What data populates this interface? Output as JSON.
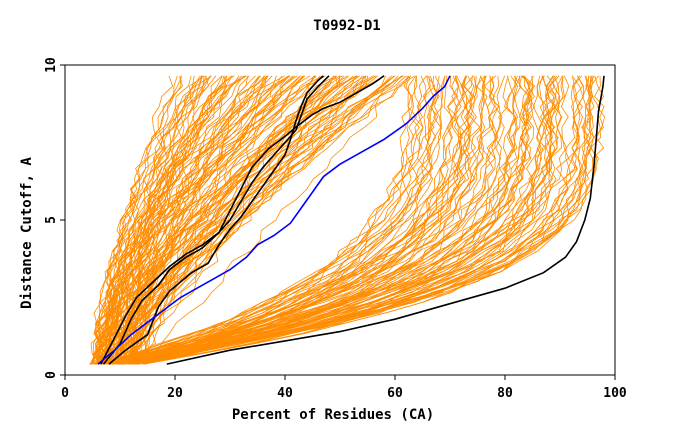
{
  "chart_data": {
    "type": "line",
    "title": "T0992-D1",
    "xlabel": "Percent of Residues (CA)",
    "ylabel": "Distance Cutoff, A",
    "xlim": [
      0,
      100
    ],
    "ylim": [
      0,
      10
    ],
    "xticks": [
      "0",
      "20",
      "40",
      "60",
      "80",
      "100"
    ],
    "yticks": [
      "0",
      "5",
      "10"
    ],
    "grid": false,
    "colors": {
      "bundle": "#ff8c00",
      "highlight_black": "#000000",
      "highlight_blue": "#0000ff"
    },
    "highlight_series": [
      {
        "color": "#000000",
        "points": [
          [
            18.5,
            0.35
          ],
          [
            30,
            0.8
          ],
          [
            40,
            1.1
          ],
          [
            50,
            1.4
          ],
          [
            60,
            1.8
          ],
          [
            70,
            2.3
          ],
          [
            80,
            2.8
          ],
          [
            87,
            3.3
          ],
          [
            91,
            3.8
          ],
          [
            93,
            4.3
          ],
          [
            94.5,
            5.0
          ],
          [
            95.5,
            5.7
          ],
          [
            96.2,
            6.8
          ],
          [
            97,
            8.5
          ],
          [
            97.8,
            9.3
          ],
          [
            98,
            9.65
          ]
        ]
      },
      {
        "color": "#000000",
        "points": [
          [
            7,
            0.35
          ],
          [
            10,
            1.0
          ],
          [
            12,
            1.8
          ],
          [
            14,
            2.4
          ],
          [
            17,
            2.9
          ],
          [
            19,
            3.4
          ],
          [
            22,
            3.8
          ],
          [
            25,
            4.1
          ],
          [
            28,
            4.6
          ],
          [
            30,
            5.3
          ],
          [
            32,
            6.0
          ],
          [
            34,
            6.7
          ],
          [
            37,
            7.3
          ],
          [
            40,
            7.7
          ],
          [
            42,
            8.0
          ],
          [
            45,
            8.4
          ],
          [
            47,
            8.6
          ],
          [
            50,
            8.8
          ],
          [
            53,
            9.1
          ],
          [
            56,
            9.4
          ],
          [
            58,
            9.65
          ]
        ]
      },
      {
        "color": "#000000",
        "points": [
          [
            6.5,
            0.35
          ],
          [
            9,
            1.2
          ],
          [
            11,
            1.9
          ],
          [
            13,
            2.5
          ],
          [
            16,
            3.0
          ],
          [
            19,
            3.5
          ],
          [
            22,
            3.9
          ],
          [
            25,
            4.2
          ],
          [
            28,
            4.6
          ],
          [
            30,
            5.0
          ],
          [
            32,
            5.6
          ],
          [
            34,
            6.2
          ],
          [
            36,
            6.7
          ],
          [
            38,
            7.1
          ],
          [
            40,
            7.5
          ],
          [
            42,
            7.9
          ],
          [
            43,
            8.4
          ],
          [
            44,
            8.9
          ],
          [
            46,
            9.3
          ],
          [
            48,
            9.65
          ]
        ]
      },
      {
        "color": "#000000",
        "points": [
          [
            8,
            0.35
          ],
          [
            11,
            0.8
          ],
          [
            15,
            1.3
          ],
          [
            17,
            2.2
          ],
          [
            19,
            2.7
          ],
          [
            21,
            3.0
          ],
          [
            23,
            3.3
          ],
          [
            26,
            3.6
          ],
          [
            28,
            4.2
          ],
          [
            30,
            4.7
          ],
          [
            32,
            5.1
          ],
          [
            34,
            5.6
          ],
          [
            36,
            6.1
          ],
          [
            38,
            6.6
          ],
          [
            40,
            7.1
          ],
          [
            41,
            7.6
          ],
          [
            42,
            8.2
          ],
          [
            43,
            8.7
          ],
          [
            44,
            9.1
          ],
          [
            46,
            9.5
          ],
          [
            47,
            9.65
          ]
        ]
      },
      {
        "color": "#0000ff",
        "points": [
          [
            6,
            0.35
          ],
          [
            9,
            0.8
          ],
          [
            12,
            1.3
          ],
          [
            15,
            1.7
          ],
          [
            18,
            2.1
          ],
          [
            21,
            2.5
          ],
          [
            24,
            2.8
          ],
          [
            27,
            3.1
          ],
          [
            30,
            3.4
          ],
          [
            33,
            3.8
          ],
          [
            35,
            4.2
          ],
          [
            38,
            4.5
          ],
          [
            41,
            4.9
          ],
          [
            43,
            5.4
          ],
          [
            45,
            5.9
          ],
          [
            47,
            6.4
          ],
          [
            50,
            6.8
          ],
          [
            54,
            7.2
          ],
          [
            58,
            7.6
          ],
          [
            62,
            8.1
          ],
          [
            65,
            8.6
          ],
          [
            67,
            9.0
          ],
          [
            69,
            9.3
          ],
          [
            70,
            9.65
          ]
        ]
      }
    ]
  }
}
